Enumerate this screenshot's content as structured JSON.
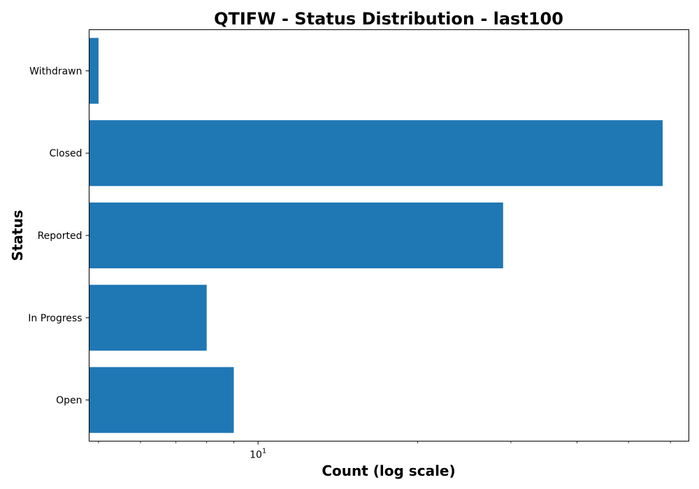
{
  "chart_data": {
    "type": "bar",
    "orientation": "horizontal",
    "title": "QTIFW - Status Distribution - last100",
    "xlabel": "Count (log scale)",
    "ylabel": "Status",
    "x_scale": "log",
    "xlim": [
      4.8,
      65
    ],
    "x_major_ticks": [
      {
        "value": 10,
        "base": "10",
        "exponent": "1"
      }
    ],
    "x_minor_ticks": [
      5,
      6,
      7,
      8,
      9,
      20,
      30,
      40,
      50,
      60
    ],
    "grid": false,
    "categories": [
      "Open",
      "In Progress",
      "Reported",
      "Closed",
      "Withdrawn"
    ],
    "values": [
      9,
      8,
      29,
      58,
      5
    ],
    "bar_color": "#1f77b4"
  }
}
